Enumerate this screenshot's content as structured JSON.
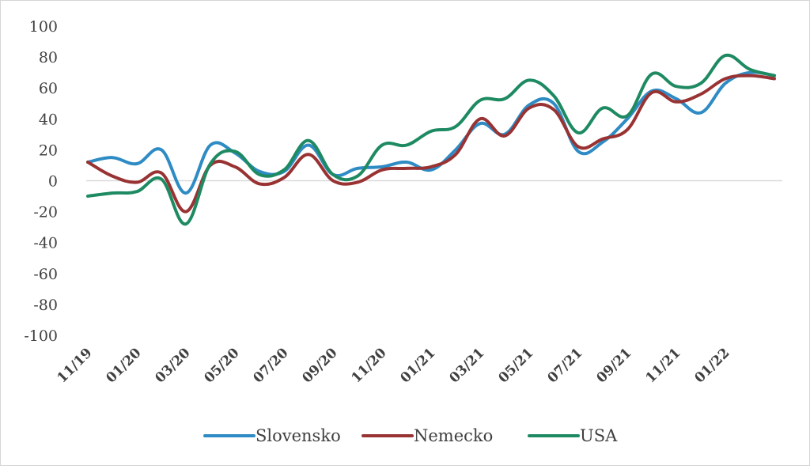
{
  "chart_data": {
    "type": "line",
    "title": "",
    "xlabel": "",
    "ylabel": "",
    "ylim": [
      -100,
      100
    ],
    "yticks": [
      100,
      80,
      60,
      40,
      20,
      0,
      -20,
      -40,
      -60,
      -80,
      -100
    ],
    "ytick_labels": [
      "100",
      "80",
      "60",
      "40",
      "20",
      "0",
      "-20",
      "-40",
      "-60",
      "-80",
      "-100"
    ],
    "grid": false,
    "zero_line": true,
    "legend_position": "bottom",
    "x": [
      "11/19",
      "12/19",
      "01/20",
      "02/20",
      "03/20",
      "04/20",
      "05/20",
      "06/20",
      "07/20",
      "08/20",
      "09/20",
      "10/20",
      "11/20",
      "12/20",
      "01/21",
      "02/21",
      "03/21",
      "04/21",
      "05/21",
      "06/21",
      "07/21",
      "08/21",
      "09/21",
      "10/21",
      "11/21",
      "12/21",
      "01/22",
      "02/22",
      "03/22"
    ],
    "xtick_labels": [
      "11/19",
      "01/20",
      "03/20",
      "05/20",
      "07/20",
      "09/20",
      "11/20",
      "01/21",
      "03/21",
      "05/21",
      "07/21",
      "09/21",
      "11/21",
      "01/22"
    ],
    "series": [
      {
        "name": "Slovensko",
        "color": "#2e8bc4",
        "values": [
          12,
          15,
          11,
          20,
          -8,
          23,
          18,
          6,
          6,
          23,
          4,
          8,
          9,
          12,
          7,
          20,
          37,
          30,
          49,
          50,
          19,
          25,
          40,
          58,
          53,
          44,
          63,
          70,
          68
        ]
      },
      {
        "name": "Nemecko",
        "color": "#993333",
        "values": [
          12,
          3,
          -1,
          5,
          -20,
          10,
          9,
          -2,
          2,
          17,
          0,
          -1,
          7,
          8,
          9,
          17,
          40,
          29,
          47,
          46,
          22,
          27,
          33,
          57,
          51,
          56,
          66,
          68,
          66
        ]
      },
      {
        "name": "USA",
        "color": "#1e8a62",
        "values": [
          -10,
          -8,
          -7,
          1,
          -28,
          11,
          19,
          4,
          7,
          26,
          4,
          3,
          23,
          23,
          32,
          35,
          52,
          53,
          65,
          55,
          31,
          47,
          42,
          69,
          61,
          63,
          81,
          72,
          68
        ]
      }
    ]
  }
}
